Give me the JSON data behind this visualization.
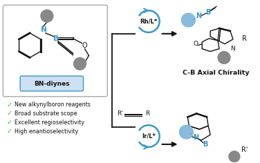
{
  "bg_color": "#ffffff",
  "box_color": "#cce0f0",
  "blue": "#3399cc",
  "blue_light": "#88bbdd",
  "gray": "#888888",
  "green": "#33bb33",
  "dark": "#111111",
  "bn_label": "BN-diynes",
  "catalyst1": "Rh/L*",
  "catalyst2": "Ir/L*",
  "chirality_label": "C-B Axial Chirality",
  "bullet1": "New alkynylboron reagents",
  "bullet2": "Broad substrate scope",
  "bullet3": "Excellent regioselectivity",
  "bullet4": "High enantioselectivity"
}
